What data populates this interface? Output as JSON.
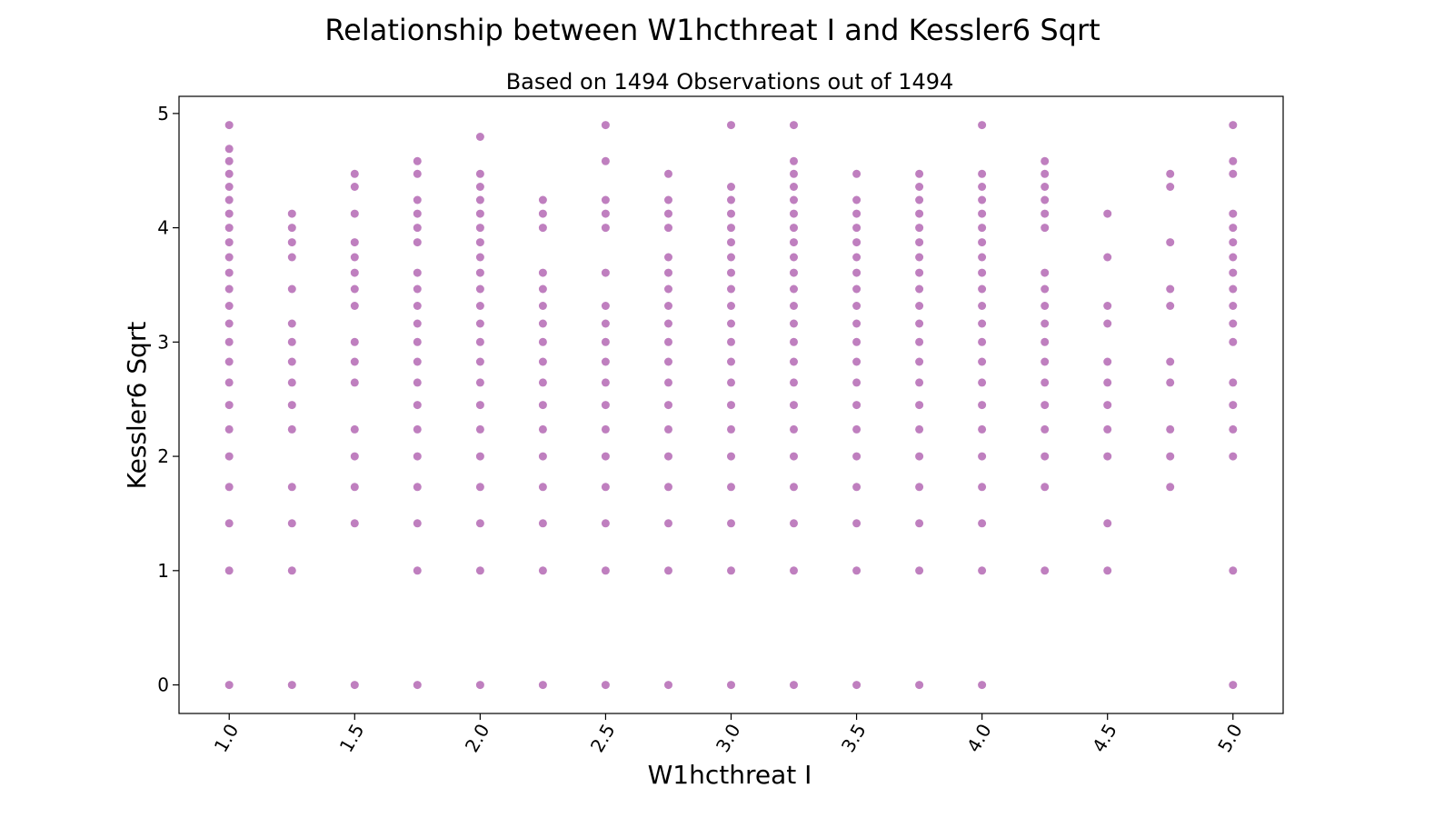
{
  "chart_data": {
    "type": "scatter",
    "title": "Relationship between W1hcthreat I and Kessler6 Sqrt",
    "subtitle": "Based on 1494 Observations out of 1494",
    "xlabel": "W1hcthreat I",
    "ylabel": "Kessler6 Sqrt",
    "xlim": [
      0.8,
      5.2
    ],
    "ylim": [
      -0.25,
      5.15
    ],
    "xticks": [
      1.0,
      1.5,
      2.0,
      2.5,
      3.0,
      3.5,
      4.0,
      4.5,
      5.0
    ],
    "xtick_labels": [
      "1.0",
      "1.5",
      "2.0",
      "2.5",
      "3.0",
      "3.5",
      "4.0",
      "4.5",
      "5.0"
    ],
    "yticks": [
      0,
      1,
      2,
      3,
      4,
      5
    ],
    "ytick_labels": [
      "0",
      "1",
      "2",
      "3",
      "4",
      "5"
    ],
    "xtick_rotation": 60,
    "grid": false,
    "legend": "none",
    "colors": {
      "points": "#800080"
    },
    "point_alpha": 0.5,
    "points_by_x": [
      {
        "x": 1.0,
        "y": [
          0,
          1.0,
          1.414,
          1.732,
          2.0,
          2.236,
          2.449,
          2.646,
          2.828,
          3.0,
          3.162,
          3.317,
          3.464,
          3.606,
          3.742,
          3.873,
          4.0,
          4.123,
          4.243,
          4.359,
          4.472,
          4.583,
          4.69,
          4.899
        ]
      },
      {
        "x": 1.25,
        "y": [
          0,
          1.0,
          1.414,
          1.732,
          2.236,
          2.449,
          2.646,
          2.828,
          3.0,
          3.162,
          3.464,
          3.742,
          3.873,
          4.0,
          4.123
        ]
      },
      {
        "x": 1.5,
        "y": [
          0,
          1.414,
          1.732,
          2.0,
          2.236,
          2.646,
          2.828,
          3.0,
          3.317,
          3.464,
          3.606,
          3.742,
          3.873,
          4.123,
          4.359,
          4.472
        ]
      },
      {
        "x": 1.75,
        "y": [
          0,
          1.0,
          1.414,
          1.732,
          2.0,
          2.236,
          2.449,
          2.646,
          2.828,
          3.0,
          3.162,
          3.317,
          3.464,
          3.606,
          3.873,
          4.0,
          4.123,
          4.243,
          4.472,
          4.583
        ]
      },
      {
        "x": 2.0,
        "y": [
          0,
          1.0,
          1.414,
          1.732,
          2.0,
          2.236,
          2.449,
          2.646,
          2.828,
          3.0,
          3.162,
          3.317,
          3.464,
          3.606,
          3.742,
          3.873,
          4.0,
          4.123,
          4.243,
          4.359,
          4.472,
          4.796
        ]
      },
      {
        "x": 2.25,
        "y": [
          0,
          1.0,
          1.414,
          1.732,
          2.0,
          2.236,
          2.449,
          2.646,
          2.828,
          3.0,
          3.162,
          3.317,
          3.464,
          3.606,
          4.0,
          4.123,
          4.243
        ]
      },
      {
        "x": 2.5,
        "y": [
          0,
          1.0,
          1.414,
          1.732,
          2.0,
          2.236,
          2.449,
          2.646,
          2.828,
          3.0,
          3.162,
          3.317,
          3.606,
          4.0,
          4.123,
          4.243,
          4.583,
          4.899
        ]
      },
      {
        "x": 2.75,
        "y": [
          0,
          1.0,
          1.414,
          1.732,
          2.0,
          2.236,
          2.449,
          2.646,
          2.828,
          3.0,
          3.162,
          3.317,
          3.464,
          3.606,
          3.742,
          4.0,
          4.123,
          4.243,
          4.472
        ]
      },
      {
        "x": 3.0,
        "y": [
          0,
          1.0,
          1.414,
          1.732,
          2.0,
          2.236,
          2.449,
          2.646,
          2.828,
          3.0,
          3.162,
          3.317,
          3.464,
          3.606,
          3.742,
          3.873,
          4.0,
          4.123,
          4.243,
          4.359,
          4.899
        ]
      },
      {
        "x": 3.25,
        "y": [
          0,
          1.0,
          1.414,
          1.732,
          2.0,
          2.236,
          2.449,
          2.646,
          2.828,
          3.0,
          3.162,
          3.317,
          3.464,
          3.606,
          3.742,
          3.873,
          4.0,
          4.123,
          4.243,
          4.359,
          4.472,
          4.583,
          4.899
        ]
      },
      {
        "x": 3.5,
        "y": [
          0,
          1.0,
          1.414,
          1.732,
          2.0,
          2.236,
          2.449,
          2.646,
          2.828,
          3.0,
          3.162,
          3.317,
          3.464,
          3.606,
          3.742,
          3.873,
          4.0,
          4.123,
          4.243,
          4.472
        ]
      },
      {
        "x": 3.75,
        "y": [
          0,
          1.0,
          1.414,
          1.732,
          2.0,
          2.236,
          2.449,
          2.646,
          2.828,
          3.0,
          3.162,
          3.317,
          3.464,
          3.606,
          3.742,
          3.873,
          4.0,
          4.123,
          4.243,
          4.359,
          4.472
        ]
      },
      {
        "x": 4.0,
        "y": [
          0,
          1.0,
          1.414,
          1.732,
          2.0,
          2.236,
          2.449,
          2.646,
          2.828,
          3.0,
          3.162,
          3.317,
          3.464,
          3.606,
          3.742,
          3.873,
          4.0,
          4.123,
          4.243,
          4.359,
          4.472,
          4.899
        ]
      },
      {
        "x": 4.25,
        "y": [
          1.0,
          1.732,
          2.0,
          2.236,
          2.449,
          2.646,
          2.828,
          3.0,
          3.162,
          3.317,
          3.464,
          3.606,
          4.0,
          4.123,
          4.243,
          4.359,
          4.472,
          4.583
        ]
      },
      {
        "x": 4.5,
        "y": [
          1.0,
          1.414,
          2.0,
          2.236,
          2.449,
          2.646,
          2.828,
          3.162,
          3.317,
          3.742,
          4.123
        ]
      },
      {
        "x": 4.75,
        "y": [
          1.732,
          2.0,
          2.236,
          2.646,
          2.828,
          3.317,
          3.464,
          3.873,
          4.359,
          4.472
        ]
      },
      {
        "x": 5.0,
        "y": [
          0,
          1.0,
          2.0,
          2.236,
          2.449,
          2.646,
          3.0,
          3.162,
          3.317,
          3.464,
          3.606,
          3.742,
          3.873,
          4.0,
          4.123,
          4.472,
          4.583,
          4.899
        ]
      }
    ]
  }
}
